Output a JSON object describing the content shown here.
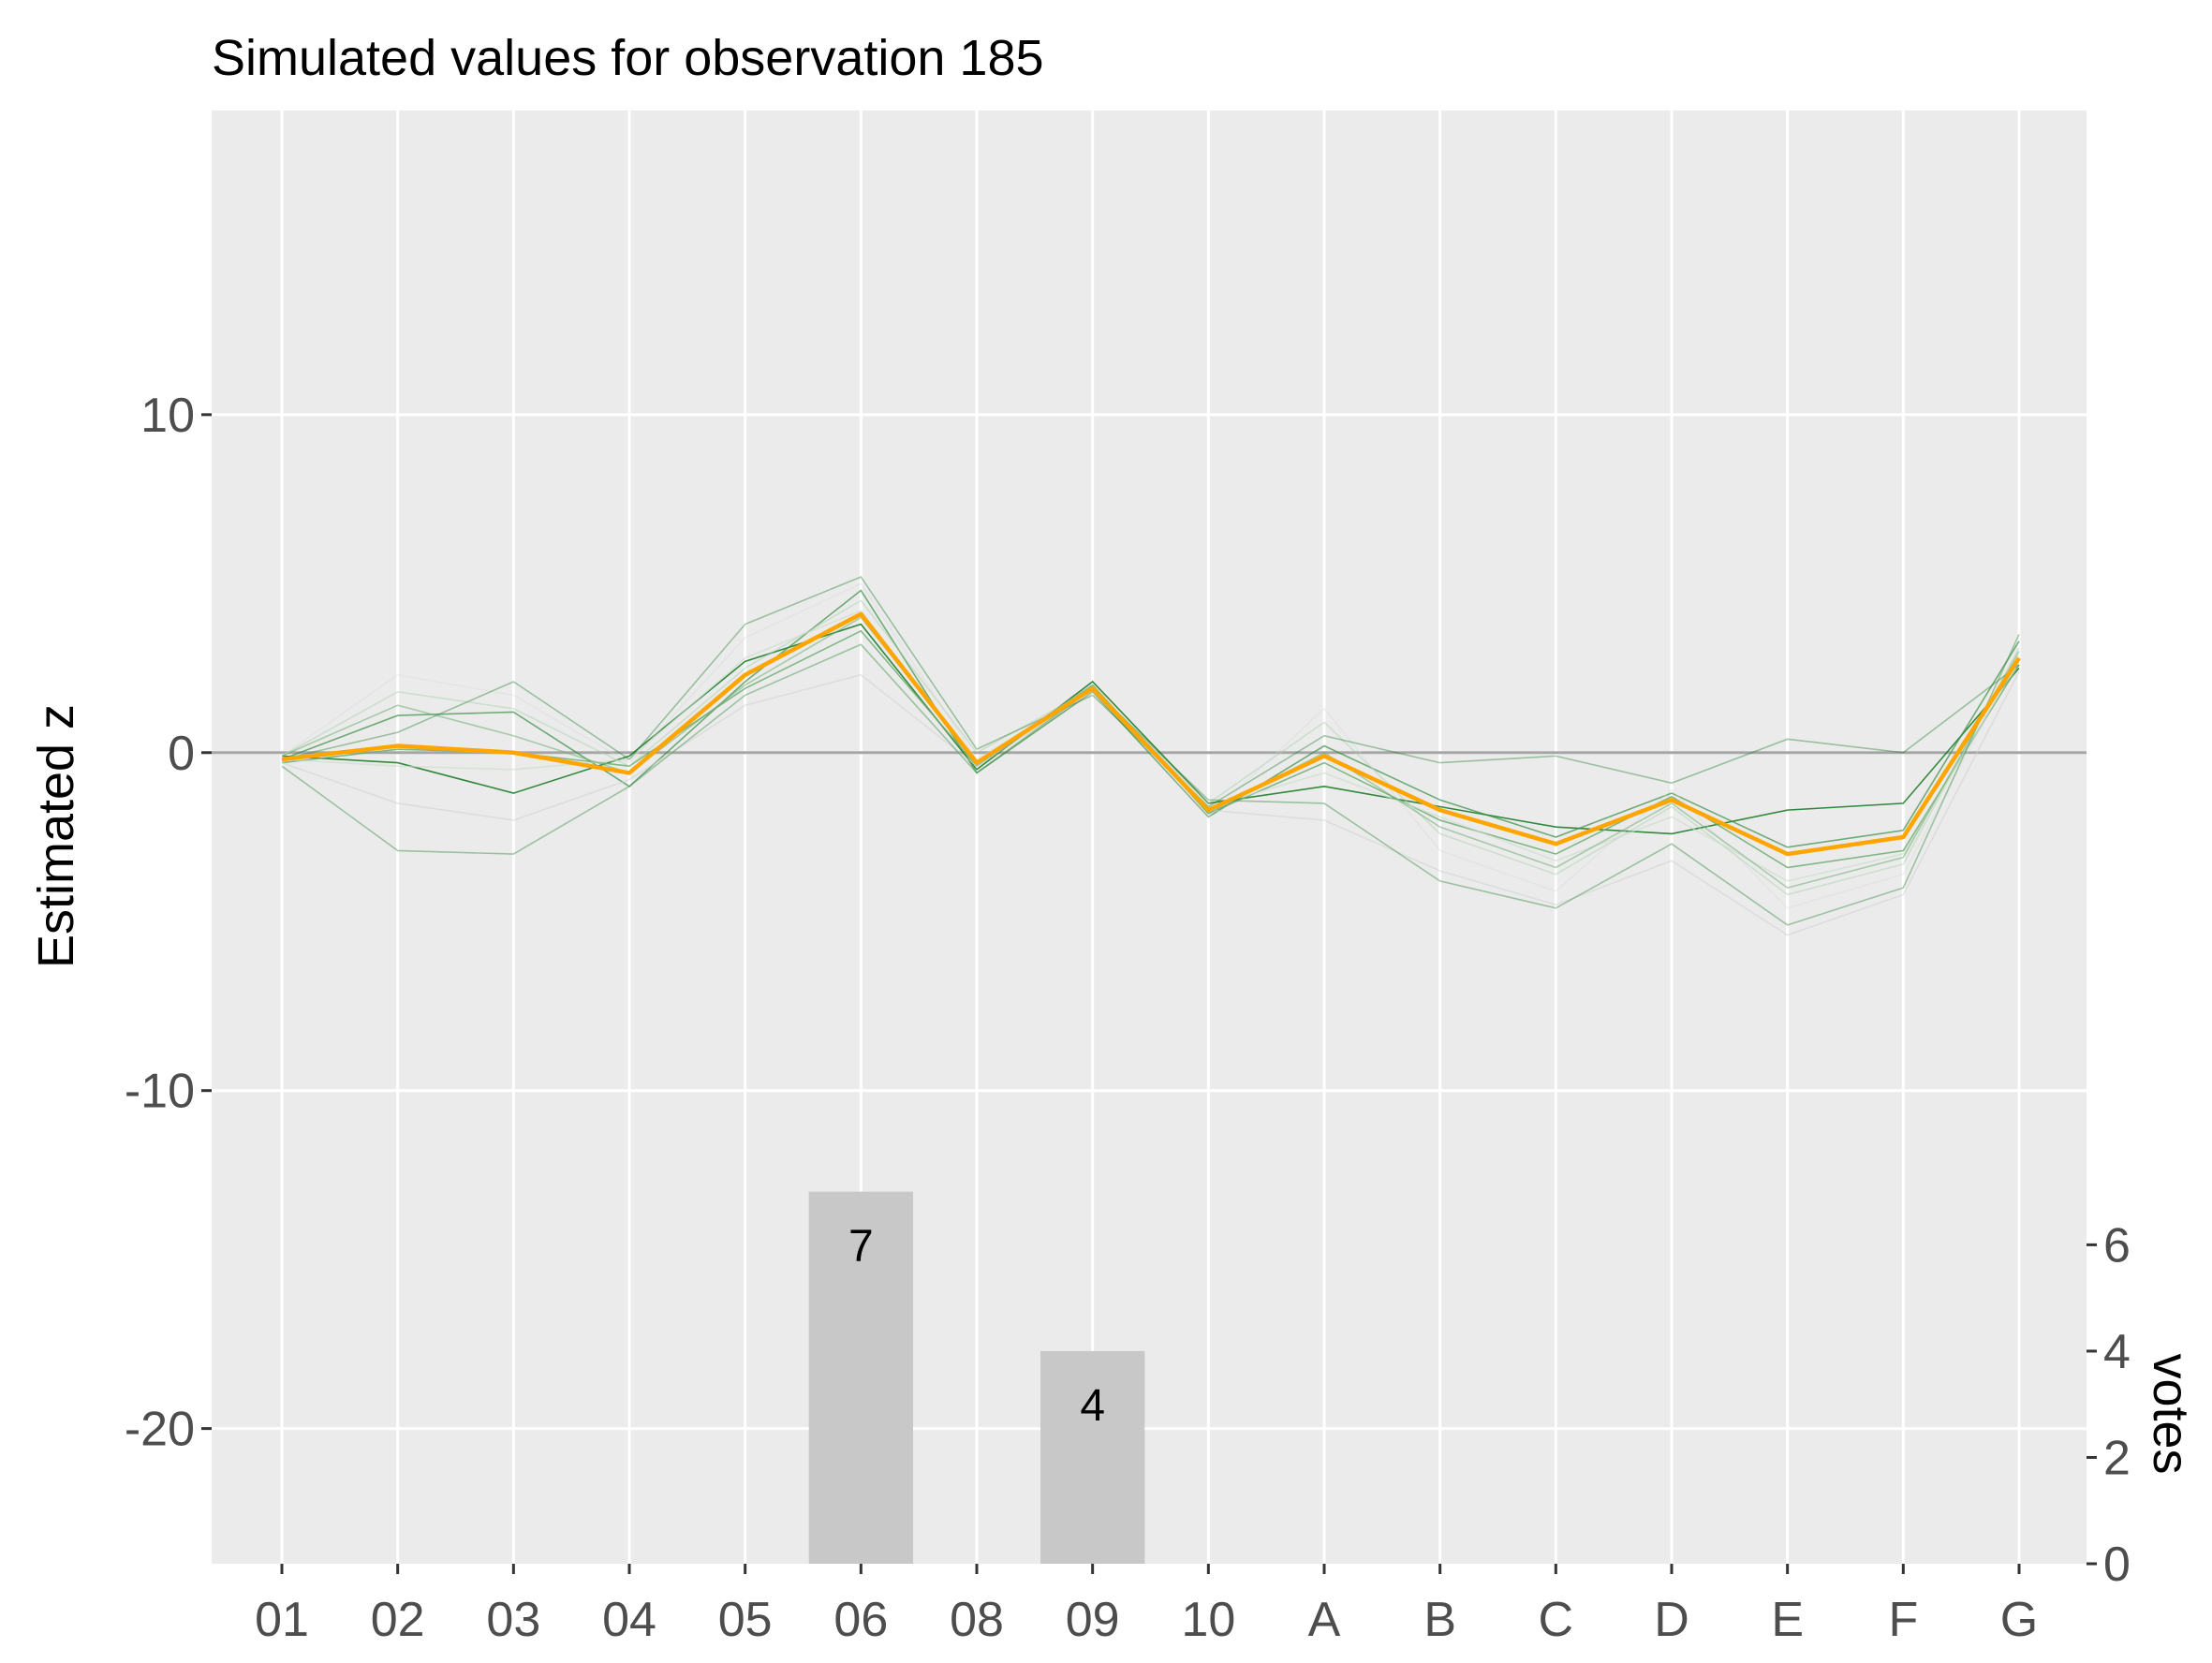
{
  "chart_data": {
    "type": "line",
    "title": "Simulated values for observation 185",
    "ylabel": "Estimated z",
    "ylabel_secondary": "votes",
    "categories": [
      "01",
      "02",
      "03",
      "04",
      "05",
      "06",
      "08",
      "09",
      "10",
      "A",
      "B",
      "C",
      "D",
      "E",
      "F",
      "G"
    ],
    "ylim": [
      -24,
      19
    ],
    "yticks": [
      -20,
      -10,
      0,
      10
    ],
    "ytick_labels": [
      "-20",
      "-10",
      "0",
      "10"
    ],
    "votes_ylim": [
      0,
      6.5
    ],
    "votes_ticks": [
      0,
      2,
      4,
      6
    ],
    "votes_tick_labels": [
      "0",
      "2",
      "4",
      "6"
    ],
    "reference_line": 0,
    "grid": true,
    "colors": {
      "panel": "#ebebeb",
      "grid": "#ffffff",
      "reference": "#a6a6a6",
      "mean_line": "#ffa500",
      "sim_lines": [
        "#1e7d2a",
        "#3a8f45",
        "#6fae72",
        "#a7cfa8",
        "#c9dcc9",
        "#d6d6d6",
        "#cfcfcf"
      ],
      "bars": "#c8c8c8"
    },
    "votes": {
      "categories": [
        "06",
        "09"
      ],
      "values": [
        7,
        4
      ],
      "labels": [
        "7",
        "4"
      ]
    },
    "mean_series": {
      "values": [
        -0.2,
        0.2,
        0.0,
        -0.6,
        2.3,
        4.1,
        -0.3,
        1.9,
        -1.7,
        -0.1,
        -1.7,
        -2.7,
        -1.4,
        -3.0,
        -2.5,
        2.8
      ]
    },
    "series": [
      {
        "values": [
          -0.1,
          -0.3,
          -1.2,
          -0.1,
          2.7,
          3.8,
          -0.5,
          2.1,
          -1.5,
          -1.0,
          -1.6,
          -2.2,
          -2.4,
          -1.7,
          -1.5,
          2.5
        ]
      },
      {
        "values": [
          -0.2,
          1.1,
          1.2,
          -1.0,
          2.1,
          4.8,
          -0.6,
          1.8,
          -1.9,
          0.2,
          -1.4,
          -2.5,
          -1.2,
          -2.8,
          -2.3,
          3.3
        ]
      },
      {
        "values": [
          -0.3,
          0.1,
          0.0,
          -0.4,
          1.9,
          3.6,
          -0.4,
          2.0,
          -1.8,
          -0.3,
          -2.0,
          -3.0,
          -1.3,
          -3.4,
          -2.9,
          2.6
        ]
      },
      {
        "values": [
          -0.1,
          1.8,
          1.3,
          -0.4,
          2.5,
          4.5,
          0.0,
          1.9,
          -1.5,
          0.9,
          -2.4,
          -3.6,
          -1.6,
          -4.2,
          -3.3,
          3.1
        ]
      },
      {
        "values": [
          -0.2,
          -0.4,
          -0.5,
          -0.2,
          2.8,
          4.2,
          -0.3,
          2.0,
          -1.6,
          -0.6,
          -1.9,
          -3.2,
          -1.9,
          -3.8,
          -3.0,
          2.7
        ]
      },
      {
        "values": [
          -0.1,
          2.3,
          1.7,
          -0.3,
          3.4,
          5.0,
          -0.2,
          1.9,
          -1.9,
          1.3,
          -2.9,
          -4.1,
          -1.1,
          -4.6,
          -3.6,
          2.9
        ]
      },
      {
        "values": [
          -0.3,
          -1.5,
          -2.0,
          -0.8,
          1.4,
          2.3,
          -0.4,
          1.8,
          -1.7,
          -2.0,
          -3.5,
          -4.5,
          -3.2,
          -5.4,
          -4.2,
          2.4
        ]
      },
      {
        "values": [
          -0.2,
          0.6,
          2.1,
          -0.2,
          3.8,
          5.2,
          0.1,
          1.7,
          -1.6,
          0.5,
          -0.3,
          -0.1,
          -0.9,
          0.4,
          0.0,
          2.6
        ]
      },
      {
        "values": [
          -0.4,
          -2.9,
          -3.0,
          -1.0,
          1.7,
          3.2,
          -0.6,
          1.9,
          -1.4,
          -1.5,
          -3.8,
          -4.6,
          -2.7,
          -5.1,
          -4.0,
          3.5
        ]
      },
      {
        "values": [
          -0.1,
          1.4,
          0.5,
          -0.6,
          2.0,
          4.0,
          -0.3,
          2.0,
          -1.8,
          0.0,
          -2.2,
          -3.4,
          -1.5,
          -4.0,
          -3.1,
          3.0
        ]
      }
    ]
  }
}
